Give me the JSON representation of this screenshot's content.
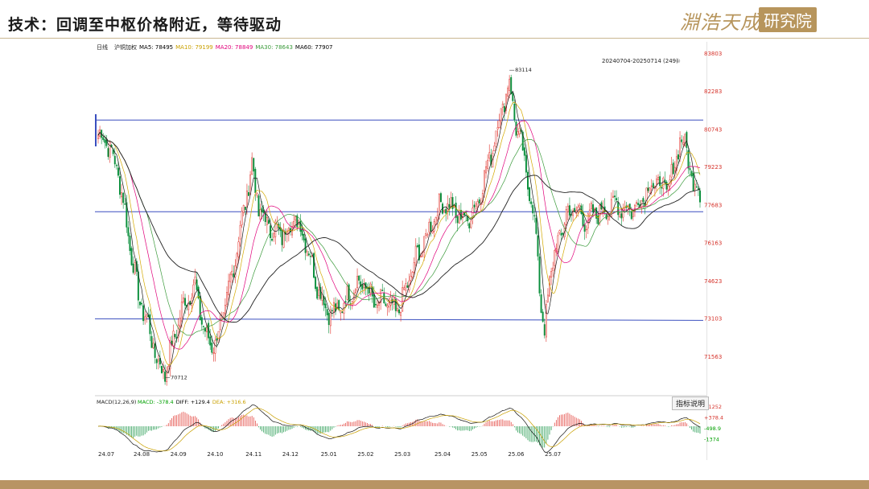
{
  "slide": {
    "title": "技术：回调至中枢价格附近，等待驱动",
    "logo_script": "淵浩天成",
    "logo_box": "研究院"
  },
  "chart_header": {
    "period": "日线",
    "contract": "沪铜加权",
    "ma_items": [
      {
        "label": "MA5:",
        "value": "78495",
        "color": "#000000"
      },
      {
        "label": "MA10:",
        "value": "79199",
        "color": "#c9a000"
      },
      {
        "label": "MA20:",
        "value": "78849",
        "color": "#e0007a"
      },
      {
        "label": "MA30:",
        "value": "78643",
        "color": "#3a9a3a"
      },
      {
        "label": "MA60:",
        "value": "77907",
        "color": "#000000"
      }
    ],
    "range_text": "20240704-20250714 (249)",
    "max_label": "83114",
    "min_label": "70712"
  },
  "macd_header": {
    "name": "MACD(12,26,9)",
    "items": [
      {
        "label": "MACD:",
        "value": "-378.4",
        "color": "#00a000"
      },
      {
        "label": "DIFF:",
        "value": "+129.4",
        "color": "#000000"
      },
      {
        "label": "DEA:",
        "value": "+316.6",
        "color": "#c9a000"
      }
    ],
    "button": "指标说明",
    "ticks": [
      "+1252",
      "+378.4",
      "-498.9",
      "-1374"
    ]
  },
  "colors": {
    "up": "#e0312a",
    "down": "#0b8f3c",
    "ma5": "#1a1a1a",
    "ma10": "#d4a900",
    "ma20": "#e0007a",
    "ma30": "#3a9a3a",
    "ma60": "#222222",
    "support": "#3a4fbf",
    "price_axis": "#d6322a"
  },
  "chart_data": {
    "type": "candlestick",
    "x_ticks": [
      "24.07",
      "24.08",
      "24.09",
      "24.10",
      "24.11",
      "24.12",
      "25.01",
      "25.02",
      "25.03",
      "25.04",
      "25.05",
      "25.06",
      "25.07"
    ],
    "y_ticks": [
      83803,
      82283,
      80743,
      79223,
      77683,
      76163,
      74623,
      73103,
      71563
    ],
    "ylim": [
      70300,
      83803
    ],
    "levels": [
      81100,
      77400,
      73080
    ],
    "price_path": [
      [
        0,
        80500
      ],
      [
        5,
        80300
      ],
      [
        12,
        79000
      ],
      [
        18,
        76500
      ],
      [
        24,
        74000
      ],
      [
        30,
        72800
      ],
      [
        36,
        71200
      ],
      [
        40,
        70900
      ],
      [
        46,
        72500
      ],
      [
        52,
        73800
      ],
      [
        58,
        74400
      ],
      [
        64,
        72400
      ],
      [
        70,
        72000
      ],
      [
        76,
        73500
      ],
      [
        82,
        75600
      ],
      [
        88,
        77800
      ],
      [
        92,
        79300
      ],
      [
        96,
        77500
      ],
      [
        102,
        76800
      ],
      [
        110,
        76500
      ],
      [
        118,
        77100
      ],
      [
        124,
        76300
      ],
      [
        130,
        74700
      ],
      [
        136,
        73500
      ],
      [
        142,
        73300
      ],
      [
        148,
        73800
      ],
      [
        154,
        74500
      ],
      [
        160,
        74400
      ],
      [
        166,
        73600
      ],
      [
        172,
        73800
      ],
      [
        178,
        73300
      ],
      [
        184,
        74200
      ],
      [
        190,
        75500
      ],
      [
        196,
        76300
      ],
      [
        202,
        77400
      ],
      [
        208,
        77800
      ],
      [
        214,
        77300
      ],
      [
        220,
        77100
      ],
      [
        226,
        77600
      ],
      [
        232,
        79000
      ],
      [
        238,
        80600
      ],
      [
        243,
        82000
      ],
      [
        246,
        82600
      ],
      [
        250,
        80900
      ],
      [
        254,
        79800
      ],
      [
        258,
        78200
      ],
      [
        262,
        76500
      ],
      [
        265,
        73500
      ],
      [
        267,
        72400
      ],
      [
        270,
        74800
      ],
      [
        274,
        75900
      ],
      [
        280,
        77300
      ],
      [
        286,
        77500
      ],
      [
        292,
        77000
      ],
      [
        298,
        77400
      ],
      [
        304,
        77500
      ],
      [
        310,
        77700
      ],
      [
        316,
        77500
      ],
      [
        322,
        77600
      ],
      [
        328,
        78300
      ],
      [
        334,
        78600
      ],
      [
        340,
        78300
      ],
      [
        345,
        79200
      ],
      [
        348,
        80500
      ],
      [
        352,
        79800
      ],
      [
        356,
        78600
      ],
      [
        360,
        78200
      ]
    ],
    "x_tick_index": [
      0,
      26,
      48,
      70,
      93,
      115,
      138,
      160,
      182,
      206,
      228,
      250,
      272
    ]
  }
}
